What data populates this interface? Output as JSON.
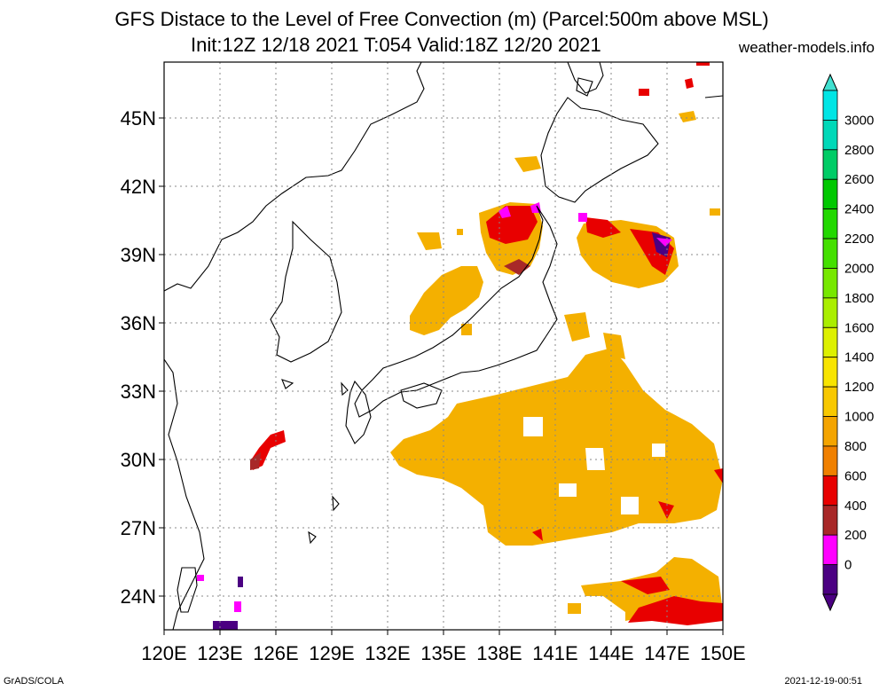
{
  "title_line1": "GFS Distace to the Level of Free Convection (m) (Parcel:500m above MSL)",
  "title_line2": "Init:12Z 12/18 2021 T:054 Valid:18Z 12/20 2021",
  "site": "weather-models.info",
  "footer_left": "GrADS/COLA",
  "footer_right": "2021-12-19-00:51",
  "lat_labels": [
    "45N",
    "42N",
    "39N",
    "36N",
    "33N",
    "30N",
    "27N",
    "24N"
  ],
  "lon_labels": [
    "120E",
    "123E",
    "126E",
    "129E",
    "132E",
    "135E",
    "138E",
    "141E",
    "144E",
    "147E",
    "150E"
  ],
  "colorbar": {
    "labels": [
      "3000",
      "2800",
      "2600",
      "2400",
      "2200",
      "2000",
      "1800",
      "1600",
      "1400",
      "1200",
      "1000",
      "800",
      "600",
      "400",
      "200",
      "0"
    ],
    "colors": [
      "#00e5e5",
      "#00d8b8",
      "#00cc66",
      "#00c800",
      "#22d800",
      "#44e000",
      "#77e800",
      "#aaee00",
      "#ddf000",
      "#f8e400",
      "#f8c800",
      "#f4a400",
      "#f08000",
      "#e80000",
      "#a82828",
      "#ff00ff",
      "#4b0082"
    ],
    "above_color": "#40e0d0",
    "below_color": "#4b0082"
  }
}
